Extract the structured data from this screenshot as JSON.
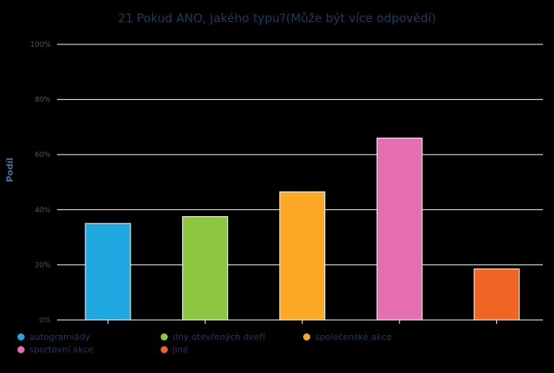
{
  "chart_data": {
    "type": "bar",
    "title": "21 Pokud ANO, jakého typu?(Může být více odpovědí)",
    "xlabel": "",
    "ylabel": "Podíl",
    "ylim": [
      0,
      100
    ],
    "yticks": [
      "0%",
      "20%",
      "40%",
      "60%",
      "80%",
      "100%"
    ],
    "grid": true,
    "legend_position": "bottom",
    "categories": [
      "autogramiády",
      "dny otevřených dveří",
      "společenské akce",
      "sportovní akce",
      "jiné"
    ],
    "values": [
      35,
      37.5,
      46.5,
      66,
      18.5
    ],
    "colors": [
      "#1fa8e0",
      "#8dc641",
      "#fba826",
      "#e56eae",
      "#f06523"
    ]
  },
  "colors": {
    "background": "#000000",
    "title": "#1f3a5f",
    "gridline": "#ffffff",
    "tick_label": "#555555"
  }
}
